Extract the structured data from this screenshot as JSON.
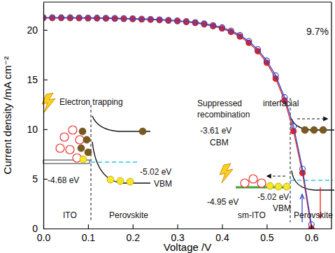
{
  "chart_data": {
    "type": "line",
    "x_label": "Voltage /V",
    "y_label": "Current density /mA cm⁻²",
    "x": [
      0,
      0.02,
      0.04,
      0.06,
      0.08,
      0.1,
      0.12,
      0.14,
      0.16,
      0.18,
      0.2,
      0.22,
      0.24,
      0.26,
      0.28,
      0.3,
      0.32,
      0.34,
      0.36,
      0.38,
      0.4,
      0.42,
      0.44,
      0.46,
      0.48,
      0.5,
      0.52,
      0.54,
      0.56,
      0.58,
      0.6
    ],
    "series": [
      {
        "color": "#e8201c",
        "marker": "circle",
        "line_style": "solid",
        "values": [
          21.2,
          21.2,
          21.2,
          21.19,
          21.18,
          21.17,
          21.16,
          21.15,
          21.13,
          21.11,
          21.09,
          21.06,
          21.03,
          20.99,
          20.94,
          20.88,
          20.8,
          20.7,
          20.56,
          20.38,
          20.14,
          19.8,
          19.34,
          18.7,
          17.85,
          16.7,
          15.1,
          12.9,
          9.8,
          5.6,
          0
        ]
      },
      {
        "color": "#2f48c8",
        "marker": "open-circle",
        "line_style": "solid",
        "values": [
          21.25,
          21.25,
          21.24,
          21.24,
          21.23,
          21.22,
          21.21,
          21.2,
          21.18,
          21.16,
          21.14,
          21.11,
          21.08,
          21.04,
          20.99,
          20.93,
          20.86,
          20.76,
          20.63,
          20.46,
          20.24,
          19.92,
          19.48,
          18.86,
          18.04,
          16.9,
          15.4,
          13.2,
          10.3,
          6.0,
          0.4
        ]
      }
    ],
    "xlim": [
      0,
      0.645
    ],
    "ylim": [
      0,
      22.8
    ],
    "xticks": [
      {
        "value": 0,
        "label": "0.0"
      },
      {
        "value": 0.1,
        "label": "0.1"
      },
      {
        "value": 0.2,
        "label": "0.2"
      },
      {
        "value": 0.3,
        "label": "0.3"
      },
      {
        "value": 0.4,
        "label": "0.4"
      },
      {
        "value": 0.5,
        "label": "0.5"
      },
      {
        "value": 0.6,
        "label": "0.6"
      }
    ],
    "yticks": [
      0,
      5,
      10,
      15,
      20
    ],
    "grid": false,
    "annotations": [
      "9.7%",
      "Electron trapping",
      "-4.68 eV",
      "-5.02 eV",
      "VBM",
      "ITO",
      "Perovskite",
      "Suppressed",
      "interfacial",
      "recombination",
      "-3.61 eV",
      "CBM",
      "-5.02 eV",
      "VBM",
      "-4.95 eV",
      "sm-ITO",
      "Perovskite"
    ]
  }
}
